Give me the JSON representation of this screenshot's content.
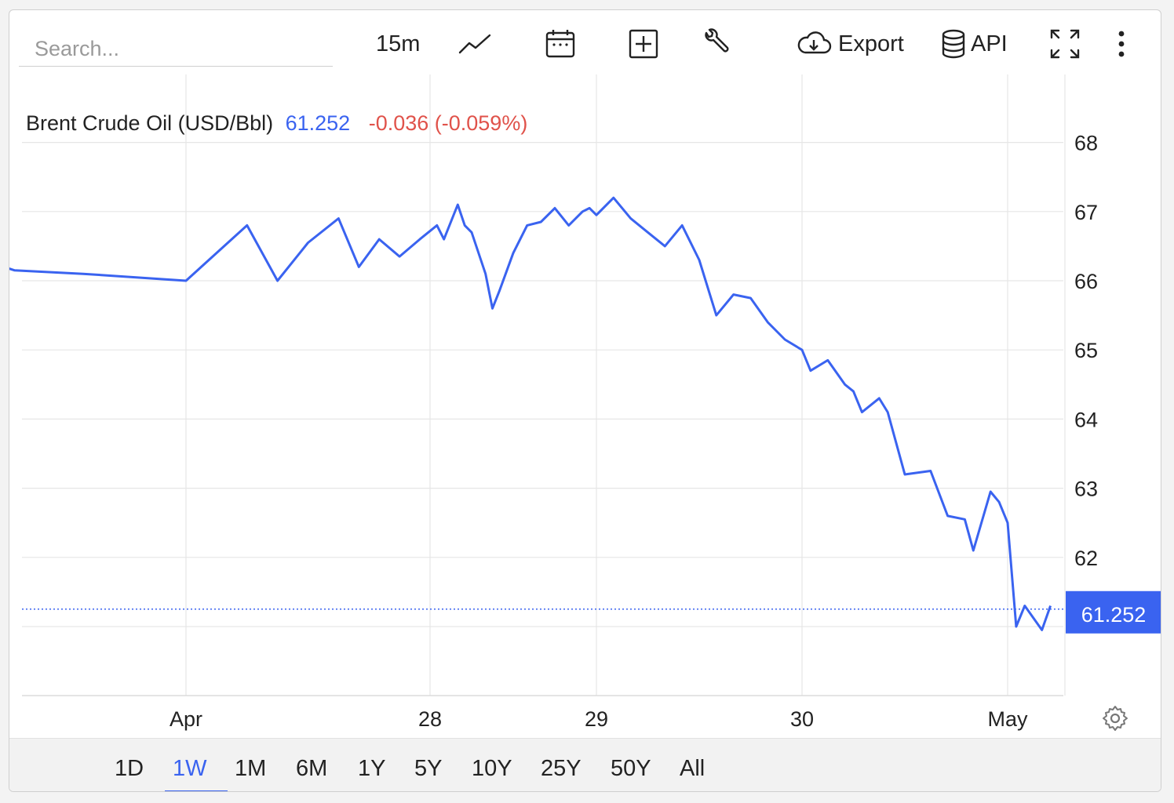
{
  "toolbar": {
    "search_placeholder": "Search...",
    "interval": "15m",
    "export_label": "Export",
    "api_label": "API",
    "icons": [
      "line-chart-icon",
      "calendar-icon",
      "add-icon",
      "wrench-icon",
      "cloud-download-icon",
      "database-icon",
      "fullscreen-icon",
      "more-vert-icon"
    ]
  },
  "legend": {
    "name": "Brent Crude Oil (USD/Bbl)",
    "price": "61.252",
    "change": "-0.036 (-0.059%)"
  },
  "colors": {
    "line": "#3a63f0",
    "negative": "#e0524a",
    "grid": "#e6e6e6"
  },
  "range_tabs": [
    "1D",
    "1W",
    "1M",
    "6M",
    "1Y",
    "5Y",
    "10Y",
    "25Y",
    "50Y",
    "All"
  ],
  "active_tab": "1W",
  "chart_data": {
    "type": "line",
    "title": "",
    "xlabel": "",
    "ylabel": "",
    "x_ticks": [
      "Apr",
      "28",
      "29",
      "30",
      "May"
    ],
    "y_ticks": [
      62,
      63,
      64,
      65,
      66,
      67,
      68
    ],
    "ylim": [
      60.0,
      69.0
    ],
    "last_value": 61.252,
    "grid": true,
    "series": [
      {
        "name": "Brent Crude Oil (USD/Bbl)",
        "x": [
          "Apr 25 18:00",
          "Apr 25 23:00",
          "Apr 26 04:00",
          "Apr 26 12:00",
          "Apr 27 00:00",
          "Apr 27 06:00",
          "Apr 27 09:00",
          "Apr 27 12:00",
          "Apr 27 15:00",
          "Apr 27 17:00",
          "Apr 27 19:00",
          "Apr 27 21:00",
          "Apr 27 23:00",
          "Apr 28 01:00",
          "Apr 28 02:00",
          "Apr 28 04:00",
          "Apr 28 05:00",
          "Apr 28 06:00",
          "Apr 28 08:00",
          "Apr 28 09:00",
          "Apr 28 10:00",
          "Apr 28 12:00",
          "Apr 28 14:00",
          "Apr 28 16:00",
          "Apr 28 18:00",
          "Apr 28 20:00",
          "Apr 28 22:00",
          "Apr 28 23:00",
          "Apr 29 00:00",
          "Apr 29 02:00",
          "Apr 29 04:00",
          "Apr 29 06:00",
          "Apr 29 08:00",
          "Apr 29 10:00",
          "Apr 29 12:00",
          "Apr 29 14:00",
          "Apr 29 16:00",
          "Apr 29 18:00",
          "Apr 29 20:00",
          "Apr 29 22:00",
          "Apr 30 00:00",
          "Apr 30 01:00",
          "Apr 30 03:00",
          "Apr 30 05:00",
          "Apr 30 06:00",
          "Apr 30 07:00",
          "Apr 30 09:00",
          "Apr 30 10:00",
          "Apr 30 12:00",
          "Apr 30 15:00",
          "Apr 30 17:00",
          "Apr 30 19:00",
          "Apr 30 20:00",
          "Apr 30 22:00",
          "Apr 30 23:00",
          "May 1 00:00",
          "May 1 01:00",
          "May 1 02:00",
          "May 1 04:00",
          "May 1 05:00"
        ],
        "y": [
          66.2,
          66.35,
          66.15,
          66.1,
          66.0,
          66.8,
          66.0,
          66.55,
          66.9,
          66.2,
          66.6,
          66.35,
          66.6,
          66.8,
          66.6,
          67.1,
          66.8,
          66.7,
          66.1,
          65.6,
          65.85,
          66.4,
          66.8,
          66.85,
          67.05,
          66.8,
          67.0,
          67.05,
          66.95,
          67.2,
          66.9,
          66.7,
          66.5,
          66.8,
          66.3,
          65.5,
          65.8,
          65.75,
          65.4,
          65.15,
          65.0,
          64.7,
          64.85,
          64.5,
          64.4,
          64.1,
          64.3,
          64.1,
          63.2,
          63.25,
          62.6,
          62.55,
          62.1,
          62.95,
          62.8,
          62.5,
          61.0,
          61.3,
          60.95,
          61.3
        ]
      }
    ]
  }
}
